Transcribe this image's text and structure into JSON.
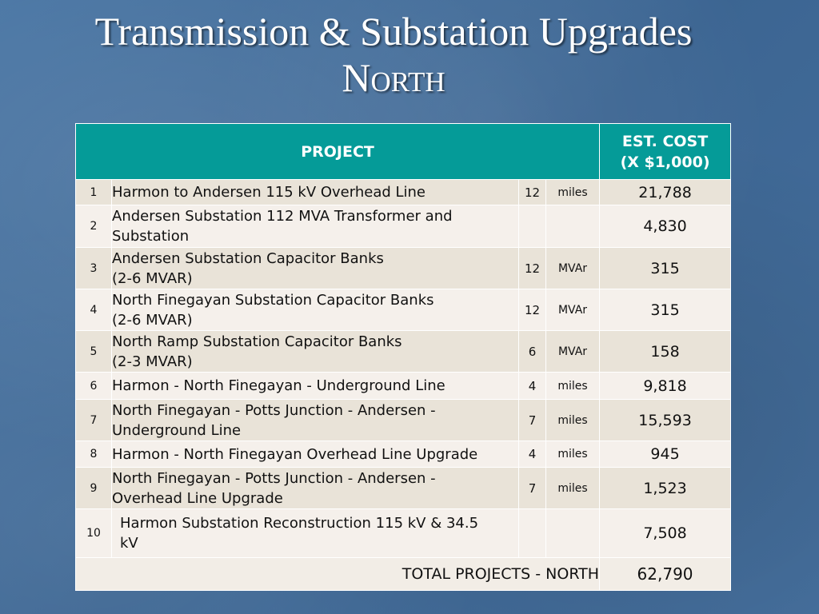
{
  "title": {
    "line1": "Transmission & Substation Upgrades",
    "line2": "North"
  },
  "table": {
    "header": {
      "project": "PROJECT",
      "cost_line1": "EST. COST",
      "cost_line2": "(X $1,000)"
    },
    "rows": [
      {
        "num": "1",
        "project_line1": "Harmon to Andersen 115 kV Overhead Line",
        "project_line2": "",
        "qty": "12",
        "unit": "miles",
        "cost": "21,788"
      },
      {
        "num": "2",
        "project_line1": "Andersen Substation 112 MVA Transformer and",
        "project_line2": "Substation",
        "qty": "",
        "unit": "",
        "cost": "4,830"
      },
      {
        "num": "3",
        "project_line1": "Andersen Substation Capacitor Banks",
        "project_line2": "(2-6 MVAR)",
        "qty": "12",
        "unit": "MVAr",
        "cost": "315"
      },
      {
        "num": "4",
        "project_line1": "North Finegayan Substation Capacitor Banks",
        "project_line2": "(2-6 MVAR)",
        "qty": "12",
        "unit": "MVAr",
        "cost": "315"
      },
      {
        "num": "5",
        "project_line1": "North Ramp Substation Capacitor Banks",
        "project_line2": "(2-3 MVAR)",
        "qty": "6",
        "unit": "MVAr",
        "cost": "158"
      },
      {
        "num": "6",
        "project_line1": "Harmon - North Finegayan - Underground Line",
        "project_line2": "",
        "qty": "4",
        "unit": "miles",
        "cost": "9,818"
      },
      {
        "num": "7",
        "project_line1": "North Finegayan - Potts Junction - Andersen -",
        "project_line2": "Underground Line",
        "qty": "7",
        "unit": "miles",
        "cost": "15,593"
      },
      {
        "num": "8",
        "project_line1": "Harmon - North Finegayan Overhead Line Upgrade",
        "project_line2": "",
        "qty": "4",
        "unit": "miles",
        "cost": "945"
      },
      {
        "num": "9",
        "project_line1": "North Finegayan - Potts Junction - Andersen -",
        "project_line2": "Overhead Line Upgrade",
        "qty": "7",
        "unit": "miles",
        "cost": "1,523"
      },
      {
        "num": "10",
        "project_line1": "Harmon Substation Reconstruction 115 kV & 34.5",
        "project_line2": "kV",
        "qty": "",
        "unit": "",
        "cost": "7,508"
      }
    ],
    "total": {
      "label": "TOTAL PROJECTS - NORTH",
      "cost": "62,790"
    }
  },
  "colors": {
    "background": "#3f6a98",
    "header": "#059b98",
    "row_odd": "#e9e3d8",
    "row_even": "#f5f0eb"
  }
}
